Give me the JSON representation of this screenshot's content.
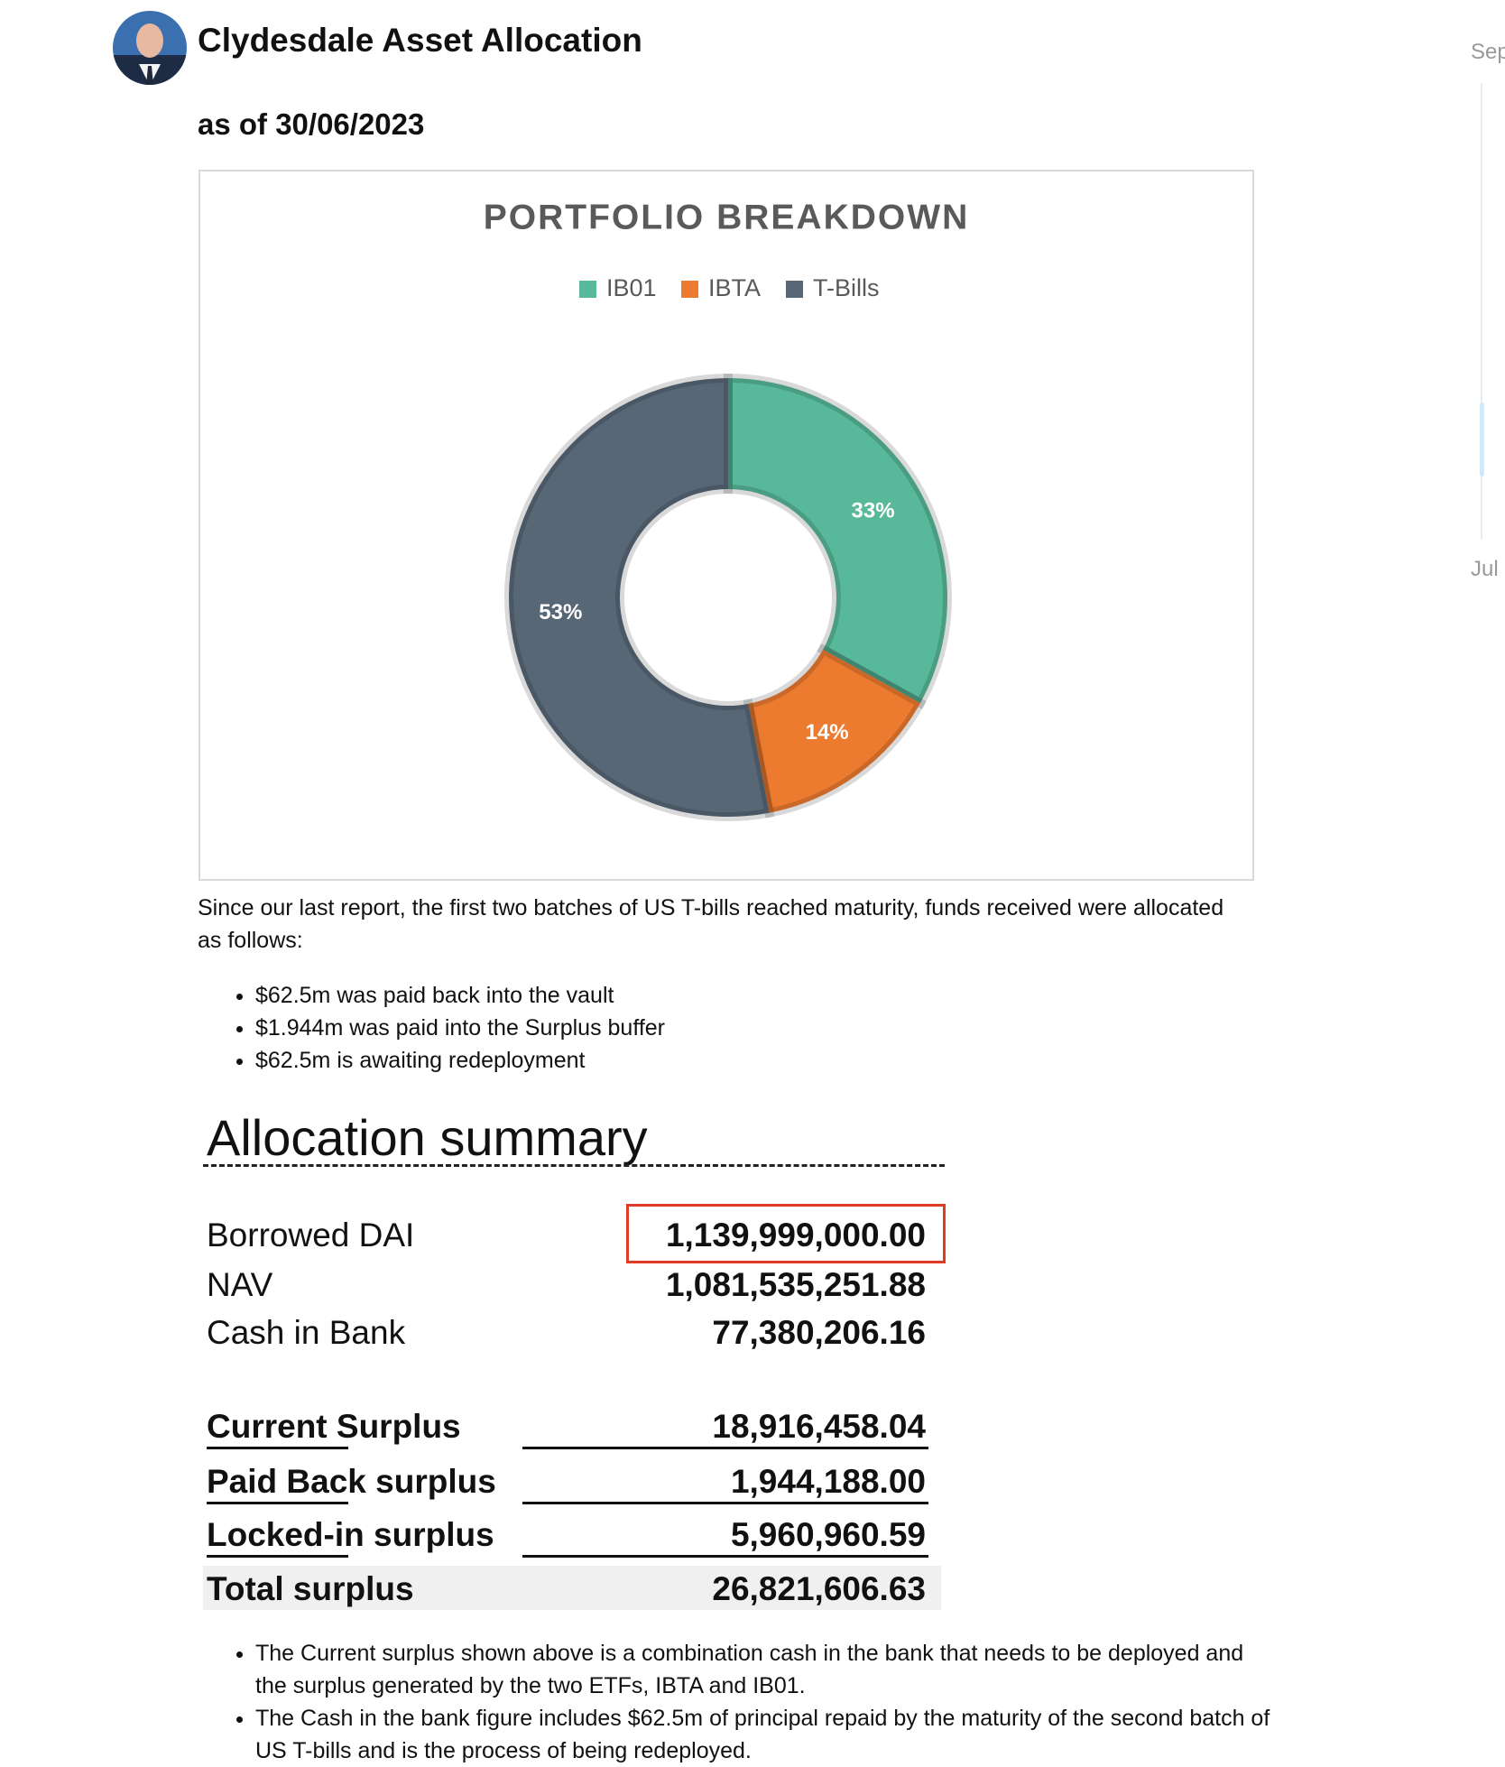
{
  "header": {
    "title": "Clydesdale Asset Allocation",
    "date_line": "as of 30/06/2023"
  },
  "chart_data": {
    "type": "donut",
    "title": "PORTFOLIO BREAKDOWN",
    "categories": [
      "IB01",
      "IBTA",
      "T-Bills"
    ],
    "values": [
      33,
      14,
      53
    ],
    "value_labels": [
      "33%",
      "14%",
      "53%"
    ],
    "colors": [
      "#57b99a",
      "#ed7b2f",
      "#586776"
    ],
    "legend": "top"
  },
  "intro": "Since our last report, the first two batches of US T-bills reached maturity, funds received were allocated as follows:",
  "bullets": [
    "$62.5m was paid back into the vault",
    "$1.944m was paid into the Surplus buffer",
    "$62.5m is awaiting redeployment"
  ],
  "summary": {
    "title": "Allocation summary",
    "rows": [
      [
        "Borrowed DAI",
        "1,139,999,000.00"
      ],
      [
        "NAV",
        "1,081,535,251.88"
      ],
      [
        "Cash in Bank",
        "77,380,206.16"
      ]
    ],
    "surplus_rows": [
      [
        "Current Surplus",
        "18,916,458.04"
      ],
      [
        "Paid Back surplus",
        "1,944,188.00"
      ],
      [
        "Locked-in surplus",
        "5,960,960.59"
      ],
      [
        "Total surplus",
        "26,821,606.63"
      ]
    ]
  },
  "notes": [
    "The Current surplus shown above is a combination cash in the bank that needs to be deployed and the surplus generated by the two ETFs, IBTA and IB01.",
    "The Cash in the bank figure includes $62.5m of principal repaid by the maturity of the second batch of US T-bills and is the process of being redeployed."
  ],
  "sidebar": {
    "top": "Sep",
    "bottom": "Jul"
  }
}
